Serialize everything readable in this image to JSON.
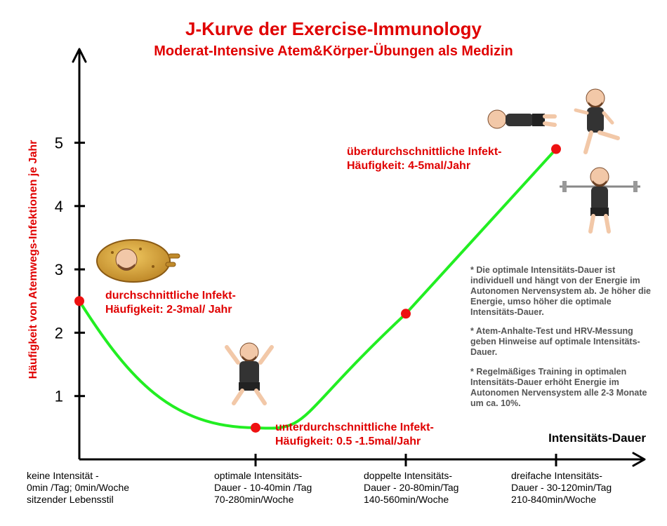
{
  "title": "J-Kurve der Exercise-Immunology",
  "subtitle": "Moderat-Intensive Atem&Körper-Übungen als Medizin",
  "chart_data": {
    "type": "line",
    "title": "J-Kurve der Exercise-Immunology",
    "subtitle": "Moderat-Intensive Atem&Körper-Übungen als Medizin",
    "ylabel": "Häufigkeit von Atemwegs-Infektionen je Jahr",
    "xlabel": "Intensitäts-Dauer",
    "ylim": [
      0,
      5.5
    ],
    "y_ticks": [
      1,
      2,
      3,
      4,
      5
    ],
    "x_categories": [
      "keine Intensität - 0min /Tag; 0min/Woche sitzender Lebensstil",
      "optimale Intensitäts-Dauer - 10-40min /Tag 70-280min/Woche",
      "doppelte Intensitäts-Dauer - 20-80min/Tag 140-560min/Woche",
      "dreifache Intensitäts-Dauer - 30-120min/Tag 210-840min/Woche"
    ],
    "points": [
      {
        "x": 0,
        "y": 2.5
      },
      {
        "x": 1,
        "y": 0.5
      },
      {
        "x": 2,
        "y": 2.3
      },
      {
        "x": 3,
        "y": 4.9
      }
    ],
    "line_color": "#22ee22",
    "marker_color": "#ee1111",
    "grid": false
  },
  "x_labels": [
    {
      "l1": "keine Intensität -",
      "l2": "0min /Tag; 0min/Woche",
      "l3": "sitzender Lebensstil"
    },
    {
      "l1": "optimale Intensitäts-",
      "l2": "Dauer - 10-40min /Tag",
      "l3": "70-280min/Woche"
    },
    {
      "l1": "doppelte Intensitäts-",
      "l2": "Dauer - 20-80min/Tag",
      "l3": "140-560min/Woche"
    },
    {
      "l1": "dreifache Intensitäts-",
      "l2": "Dauer - 30-120min/Tag",
      "l3": "210-840min/Woche"
    }
  ],
  "annotations": {
    "avg": {
      "l1": "durchschnittliche Infekt-",
      "l2": "Häufigkeit: 2-3mal/ Jahr"
    },
    "below": {
      "l1": "unterdurchschnittliche Infekt-",
      "l2": "Häufigkeit: 0.5 -1.5mal/Jahr"
    },
    "above": {
      "l1": "überdurchschnittliche Infekt-",
      "l2": "Häufigkeit: 4-5mal/Jahr"
    }
  },
  "notes": [
    "* Die optimale Intensitäts-Dauer ist individuell und hängt von der Energie im Autonomen Nervensystem ab. Je höher die Energie, umso höher die optimale Intensitäts-Dauer.",
    "* Atem-Anhalte-Test und HRV-Messung geben Hinweise auf optimale Intensitäts-Dauer.",
    "* Regelmäßiges Training in optimalen Intensitäts-Dauer erhöht Energie im Autonomen Nervensystem alle 2-3 Monate um ca. 10%."
  ],
  "illustrations": [
    "couch-potato-avatar",
    "jumping-avatar",
    "lying-exhausted-avatar",
    "running-avatar",
    "barbell-squat-avatar"
  ]
}
